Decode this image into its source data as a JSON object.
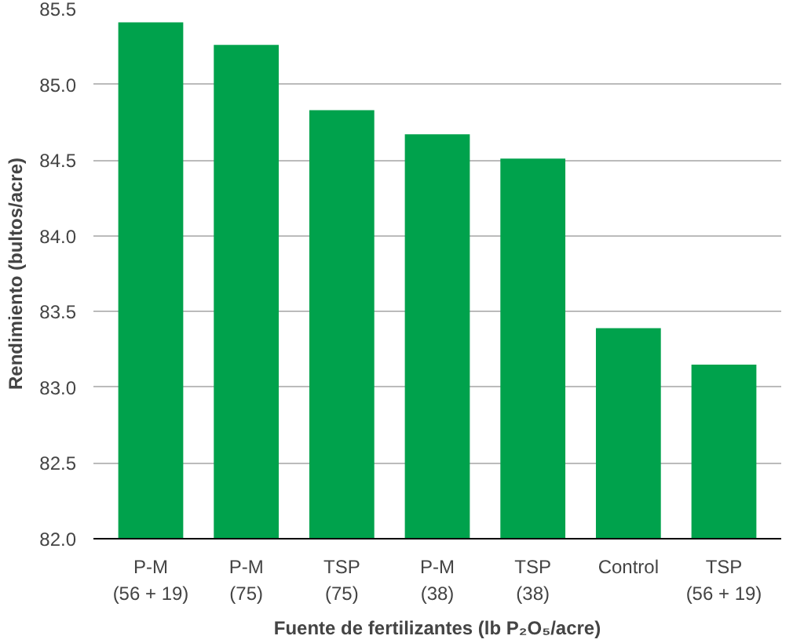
{
  "chart_data": {
    "type": "bar",
    "categories": [
      "P-M\n(56 + 19)",
      "P-M\n(75)",
      "TSP\n(75)",
      "P-M\n(38)",
      "TSP\n(38)",
      "Control",
      "TSP\n(56 + 19)"
    ],
    "values": [
      85.41,
      85.26,
      84.83,
      84.67,
      84.51,
      83.39,
      83.15
    ],
    "color": "#00a24c",
    "xlabel": "Fuente de fertilizantes (lb P₂O₅/acre)",
    "ylabel": "Rendimiento (bultos/acre)",
    "ylim": [
      82.0,
      85.5
    ],
    "yticks": [
      {
        "value": 82.0,
        "label": "82.0"
      },
      {
        "value": 82.5,
        "label": "82.5"
      },
      {
        "value": 83.0,
        "label": "83.0"
      },
      {
        "value": 83.5,
        "label": "83.5"
      },
      {
        "value": 84.0,
        "label": "84.0"
      },
      {
        "value": 84.5,
        "label": "84.5"
      },
      {
        "value": 85.0,
        "label": "85.0"
      },
      {
        "value": 85.5,
        "label": "85.5"
      }
    ],
    "grid": "y"
  }
}
